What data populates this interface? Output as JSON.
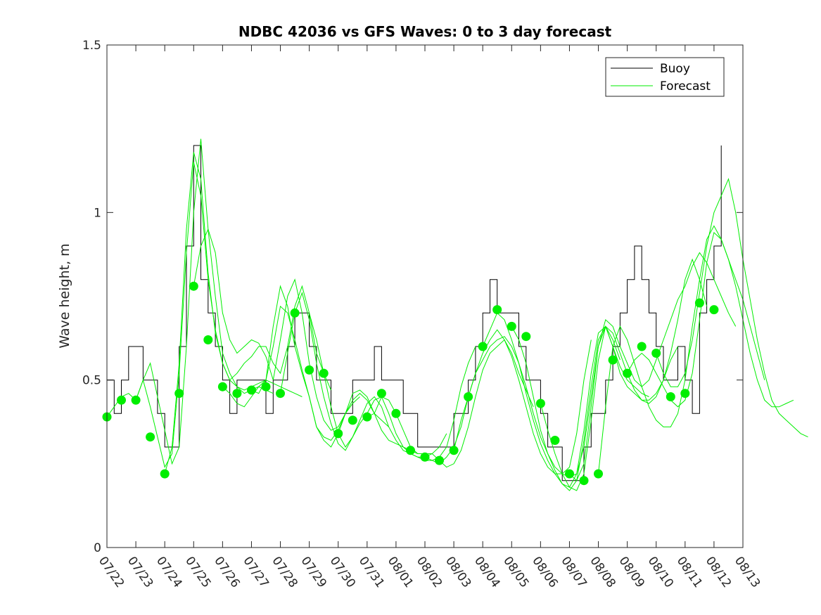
{
  "chart_data": {
    "type": "line",
    "title": "NDBC 42036 vs GFS Waves: 0 to 3 day forecast",
    "xlabel": "",
    "ylabel": "Wave height, m",
    "ylim": [
      0,
      1.5
    ],
    "yticks": [
      "0",
      "0.5",
      "1",
      "1.5"
    ],
    "xlim": [
      "2024-07-22",
      "2024-08-13"
    ],
    "xticks": [
      "07/22",
      "07/23",
      "07/24",
      "07/25",
      "07/26",
      "07/27",
      "07/28",
      "07/29",
      "07/30",
      "07/31",
      "08/01",
      "08/02",
      "08/03",
      "08/04",
      "08/05",
      "08/06",
      "08/07",
      "08/08",
      "08/09",
      "08/10",
      "08/11",
      "08/12",
      "08/13"
    ],
    "legend": {
      "position": "top-right",
      "entries": [
        "Buoy",
        "Forecast"
      ]
    },
    "colors": {
      "buoy": "#000000",
      "forecast": "#00ee00",
      "analysis_points": "#00ee00"
    },
    "series": [
      {
        "name": "Buoy",
        "type": "step-line",
        "x": [
          "07/22 00h",
          "07/22 06h",
          "07/22 12h",
          "07/22 18h",
          "07/23 00h",
          "07/23 06h",
          "07/23 12h",
          "07/23 18h",
          "07/24 00h",
          "07/24 06h",
          "07/24 12h",
          "07/24 18h",
          "07/25 00h",
          "07/25 06h",
          "07/25 12h",
          "07/25 18h",
          "07/26 00h",
          "07/26 06h",
          "07/26 12h",
          "07/26 18h",
          "07/27 00h",
          "07/27 06h",
          "07/27 12h",
          "07/27 18h",
          "07/28 00h",
          "07/28 06h",
          "07/28 12h",
          "07/28 18h",
          "07/29 00h",
          "07/29 06h",
          "07/29 12h",
          "07/29 18h",
          "07/30 00h",
          "07/30 06h",
          "07/30 12h",
          "07/30 18h",
          "07/31 00h",
          "07/31 06h",
          "07/31 12h",
          "07/31 18h",
          "08/01 00h",
          "08/01 06h",
          "08/01 12h",
          "08/01 18h",
          "08/02 00h",
          "08/02 06h",
          "08/02 12h",
          "08/02 18h",
          "08/03 00h",
          "08/03 06h",
          "08/03 12h",
          "08/03 18h",
          "08/04 00h",
          "08/04 06h",
          "08/04 12h",
          "08/04 18h",
          "08/05 00h",
          "08/05 06h",
          "08/05 12h",
          "08/05 18h",
          "08/06 00h",
          "08/06 06h",
          "08/06 12h",
          "08/06 18h",
          "08/07 00h",
          "08/07 06h",
          "08/07 12h",
          "08/07 18h",
          "08/08 00h",
          "08/08 06h",
          "08/08 12h",
          "08/08 18h",
          "08/09 00h",
          "08/09 06h",
          "08/09 12h",
          "08/09 18h",
          "08/10 00h",
          "08/10 06h",
          "08/10 12h",
          "08/10 18h",
          "08/11 00h",
          "08/11 06h",
          "08/11 12h",
          "08/11 18h",
          "08/12 00h",
          "08/12 06h"
        ],
        "values": [
          0.5,
          0.4,
          0.5,
          0.6,
          0.6,
          0.5,
          0.5,
          0.4,
          0.3,
          0.3,
          0.6,
          0.9,
          1.2,
          0.8,
          0.7,
          0.6,
          0.5,
          0.4,
          0.5,
          0.5,
          0.5,
          0.5,
          0.4,
          0.5,
          0.5,
          0.6,
          0.7,
          0.7,
          0.6,
          0.5,
          0.5,
          0.4,
          0.4,
          0.4,
          0.5,
          0.5,
          0.5,
          0.6,
          0.5,
          0.5,
          0.5,
          0.4,
          0.4,
          0.3,
          0.3,
          0.3,
          0.3,
          0.3,
          0.4,
          0.4,
          0.5,
          0.6,
          0.7,
          0.8,
          0.7,
          0.7,
          0.7,
          0.6,
          0.5,
          0.5,
          0.4,
          0.3,
          0.3,
          0.2,
          0.2,
          0.2,
          0.3,
          0.4,
          0.4,
          0.5,
          0.6,
          0.7,
          0.8,
          0.9,
          0.8,
          0.7,
          0.6,
          0.5,
          0.5,
          0.6,
          0.5,
          0.4,
          0.7,
          0.8,
          0.9,
          1.2
        ]
      },
      {
        "name": "Forecast",
        "start": "07/22 00h",
        "step_hours": 6,
        "values": [
          0.39,
          0.42,
          0.45,
          0.46,
          0.44,
          0.5,
          0.55,
          0.45,
          0.35,
          0.25,
          0.3,
          0.6,
          1.0,
          1.22,
          0.95,
          0.75,
          0.58,
          0.52,
          0.48,
          0.46,
          0.47,
          0.48,
          0.47,
          0.46
        ]
      },
      {
        "name": "",
        "start": "07/23 00h",
        "step_hours": 6,
        "values": [
          0.44,
          0.5,
          0.42,
          0.33,
          0.24,
          0.28,
          0.52,
          0.88,
          1.15,
          1.05,
          0.8,
          0.65,
          0.55,
          0.5,
          0.48,
          0.47,
          0.48,
          0.49,
          0.5,
          0.49,
          0.48,
          0.47,
          0.46,
          0.45
        ]
      },
      {
        "name": "",
        "start": "07/24 00h",
        "step_hours": 6,
        "values": [
          0.22,
          0.3,
          0.55,
          0.95,
          1.18,
          1.1,
          0.82,
          0.64,
          0.55,
          0.5,
          0.52,
          0.55,
          0.57,
          0.6,
          0.6,
          0.55,
          0.52,
          0.6,
          0.72,
          0.78,
          0.7,
          0.58,
          0.52,
          0.47
        ]
      },
      {
        "name": "",
        "start": "07/25 00h",
        "step_hours": 6,
        "values": [
          0.78,
          0.9,
          0.95,
          0.88,
          0.7,
          0.62,
          0.58,
          0.6,
          0.62,
          0.61,
          0.57,
          0.5,
          0.62,
          0.75,
          0.8,
          0.7,
          0.55,
          0.45,
          0.38,
          0.35,
          0.36,
          0.4,
          0.43,
          0.45
        ]
      },
      {
        "name": "",
        "start": "07/26 00h",
        "step_hours": 6,
        "values": [
          0.48,
          0.46,
          0.43,
          0.42,
          0.45,
          0.48,
          0.5,
          0.66,
          0.78,
          0.72,
          0.6,
          0.52,
          0.45,
          0.36,
          0.33,
          0.32,
          0.35,
          0.4,
          0.44,
          0.46,
          0.44,
          0.4,
          0.38,
          0.36
        ]
      },
      {
        "name": "",
        "start": "07/27 00h",
        "step_hours": 6,
        "values": [
          0.47,
          0.46,
          0.5,
          0.6,
          0.72,
          0.7,
          0.62,
          0.53,
          0.45,
          0.36,
          0.32,
          0.3,
          0.34,
          0.4,
          0.46,
          0.47,
          0.45,
          0.4,
          0.35,
          0.32,
          0.31,
          0.3,
          0.29,
          0.28
        ]
      },
      {
        "name": "",
        "start": "07/28 00h",
        "step_hours": 6,
        "values": [
          0.46,
          0.58,
          0.7,
          0.76,
          0.68,
          0.55,
          0.45,
          0.37,
          0.31,
          0.29,
          0.33,
          0.38,
          0.43,
          0.45,
          0.42,
          0.36,
          0.32,
          0.29,
          0.28,
          0.27,
          0.27,
          0.28,
          0.3,
          0.34
        ]
      },
      {
        "name": "",
        "start": "07/29 00h",
        "step_hours": 6,
        "values": [
          0.7,
          0.62,
          0.52,
          0.42,
          0.34,
          0.3,
          0.33,
          0.37,
          0.4,
          0.44,
          0.45,
          0.4,
          0.34,
          0.3,
          0.28,
          0.27,
          0.26,
          0.26,
          0.27,
          0.3,
          0.38,
          0.48,
          0.55,
          0.6
        ]
      },
      {
        "name": "",
        "start": "07/31 00h",
        "step_hours": 6,
        "values": [
          0.39,
          0.4,
          0.45,
          0.44,
          0.4,
          0.35,
          0.3,
          0.28,
          0.28,
          0.28,
          0.26,
          0.24,
          0.25,
          0.29,
          0.36,
          0.45,
          0.53,
          0.58,
          0.6,
          0.62,
          0.58,
          0.52,
          0.47,
          0.42
        ]
      },
      {
        "name": "",
        "start": "08/02 00h",
        "step_hours": 6,
        "values": [
          0.27,
          0.26,
          0.25,
          0.27,
          0.3,
          0.36,
          0.45,
          0.52,
          0.58,
          0.62,
          0.65,
          0.62,
          0.57,
          0.5,
          0.42,
          0.34,
          0.28,
          0.24,
          0.22,
          0.22,
          0.24,
          0.34,
          0.5,
          0.62
        ]
      },
      {
        "name": "",
        "start": "08/03 00h",
        "step_hours": 6,
        "values": [
          0.29,
          0.38,
          0.45,
          0.52,
          0.56,
          0.6,
          0.62,
          0.63,
          0.6,
          0.55,
          0.48,
          0.4,
          0.33,
          0.28,
          0.24,
          0.22,
          0.21,
          0.22,
          0.3,
          0.45,
          0.6,
          0.66,
          0.62,
          0.56
        ]
      },
      {
        "name": "",
        "start": "08/04 00h",
        "step_hours": 6,
        "values": [
          0.6,
          0.65,
          0.7,
          0.68,
          0.62,
          0.55,
          0.46,
          0.38,
          0.31,
          0.26,
          0.22,
          0.19,
          0.18,
          0.22,
          0.35,
          0.52,
          0.64,
          0.66,
          0.6,
          0.54,
          0.5,
          0.48,
          0.46,
          0.45
        ]
      },
      {
        "name": "",
        "start": "08/05 00h",
        "step_hours": 6,
        "values": [
          0.66,
          0.62,
          0.55,
          0.45,
          0.35,
          0.28,
          0.23,
          0.19,
          0.17,
          0.2,
          0.32,
          0.48,
          0.62,
          0.66,
          0.6,
          0.52,
          0.48,
          0.46,
          0.44,
          0.44,
          0.46,
          0.5,
          0.56,
          0.6
        ]
      },
      {
        "name": "",
        "start": "08/06 00h",
        "step_hours": 6,
        "values": [
          0.43,
          0.35,
          0.28,
          0.22,
          0.18,
          0.17,
          0.22,
          0.38,
          0.56,
          0.66,
          0.64,
          0.58,
          0.52,
          0.47,
          0.44,
          0.43,
          0.45,
          0.5,
          0.58,
          0.68,
          0.8,
          0.86,
          0.8,
          0.72
        ]
      },
      {
        "name": "",
        "start": "08/07 00h",
        "step_hours": 6,
        "values": [
          0.22,
          0.2,
          0.25,
          0.42,
          0.6,
          0.68,
          0.66,
          0.6,
          0.55,
          0.5,
          0.48,
          0.5,
          0.56,
          0.62,
          0.68,
          0.74,
          0.78,
          0.84,
          0.88,
          0.85,
          0.8,
          0.75,
          0.7,
          0.66
        ]
      },
      {
        "name": "",
        "start": "08/08 00h",
        "step_hours": 6,
        "values": [
          0.22,
          0.42,
          0.6,
          0.66,
          0.62,
          0.55,
          0.48,
          0.42,
          0.38,
          0.36,
          0.36,
          0.4,
          0.5,
          0.66,
          0.8,
          0.92,
          0.96,
          0.92,
          0.86,
          0.8,
          0.74,
          0.66,
          0.58,
          0.5
        ]
      },
      {
        "name": "",
        "start": "08/09 00h",
        "step_hours": 6,
        "values": [
          0.52,
          0.56,
          0.58,
          0.56,
          0.52,
          0.48,
          0.44,
          0.42,
          0.44,
          0.52,
          0.68,
          0.85,
          0.94,
          0.92,
          0.86,
          0.78,
          0.68,
          0.58,
          0.5,
          0.44,
          0.42,
          0.42,
          0.43,
          0.44
        ]
      },
      {
        "name": "",
        "start": "08/10 00h",
        "step_hours": 6,
        "values": [
          0.58,
          0.52,
          0.48,
          0.48,
          0.52,
          0.62,
          0.76,
          0.9,
          1.0,
          1.05,
          1.1,
          1.0,
          0.86,
          0.74,
          0.62,
          0.52,
          0.44,
          0.4,
          0.38,
          0.36,
          0.34,
          0.33
        ]
      }
    ],
    "analysis_points": {
      "name": "",
      "x": [
        "07/22 00h",
        "07/22 12h",
        "07/23 00h",
        "07/23 12h",
        "07/24 00h",
        "07/24 12h",
        "07/25 00h",
        "07/25 12h",
        "07/26 00h",
        "07/26 12h",
        "07/27 00h",
        "07/27 12h",
        "07/28 00h",
        "07/28 12h",
        "07/29 00h",
        "07/29 12h",
        "07/30 00h",
        "07/30 12h",
        "07/31 00h",
        "07/31 12h",
        "08/01 00h",
        "08/01 12h",
        "08/02 00h",
        "08/02 12h",
        "08/03 00h",
        "08/03 12h",
        "08/04 00h",
        "08/04 12h",
        "08/05 00h",
        "08/05 12h",
        "08/06 00h",
        "08/06 12h",
        "08/07 00h",
        "08/07 12h",
        "08/08 00h",
        "08/08 12h",
        "08/09 00h",
        "08/09 12h",
        "08/10 00h",
        "08/10 12h",
        "08/11 00h",
        "08/11 12h",
        "08/12 00h"
      ],
      "values": [
        0.39,
        0.44,
        0.44,
        0.33,
        0.22,
        0.46,
        0.78,
        0.62,
        0.48,
        0.46,
        0.47,
        0.48,
        0.46,
        0.7,
        0.53,
        0.52,
        0.34,
        0.38,
        0.39,
        0.46,
        0.4,
        0.29,
        0.27,
        0.26,
        0.29,
        0.45,
        0.6,
        0.71,
        0.66,
        0.63,
        0.43,
        0.32,
        0.22,
        0.2,
        0.22,
        0.56,
        0.52,
        0.6,
        0.58,
        0.45,
        0.46,
        0.73,
        0.71
      ]
    }
  }
}
